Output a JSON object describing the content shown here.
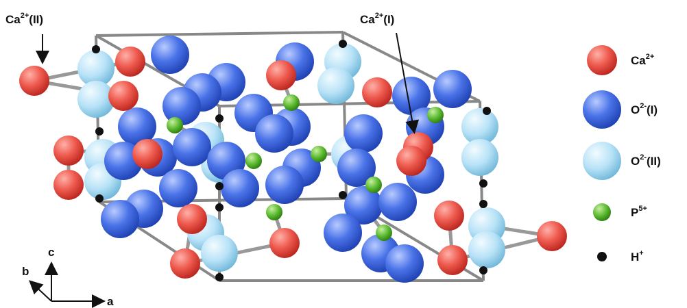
{
  "annotations": [
    {
      "base": "Ca",
      "sup": "2+",
      "suffix": "(II)"
    },
    {
      "base": "Ca",
      "sup": "2+",
      "suffix": "(I)"
    }
  ],
  "legend": [
    {
      "base": "Ca",
      "sup": "2+"
    },
    {
      "base": "O",
      "sup": "2-",
      "suffix": "(I)"
    },
    {
      "base": "O",
      "sup": "2-",
      "suffix": "(II)"
    },
    {
      "base": "P",
      "sup": "5+"
    },
    {
      "base": "H",
      "sup": "+"
    }
  ],
  "axes": {
    "a": "a",
    "b": "b",
    "c": "c"
  }
}
